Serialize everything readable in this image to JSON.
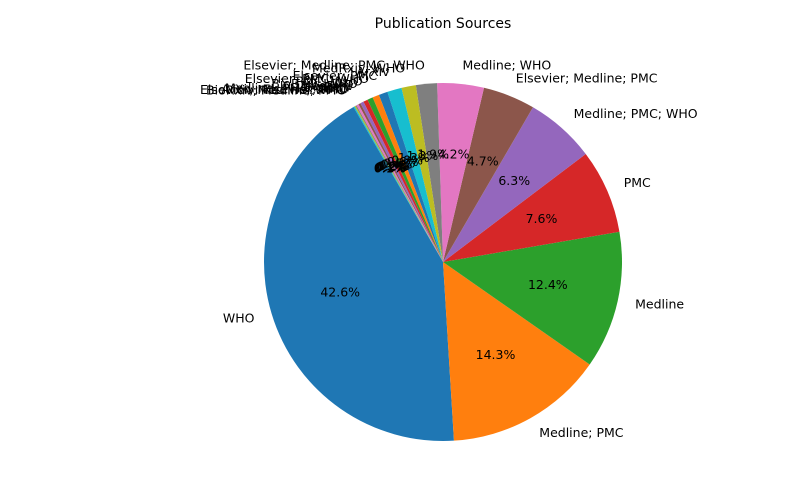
{
  "chart_data": {
    "type": "pie",
    "title": "Publication Sources",
    "start_angle_deg": 120,
    "direction": "counterclockwise",
    "legend": "none",
    "slices": [
      {
        "label": "WHO",
        "value": 42.6,
        "pct_label": "42.6%",
        "color": "#1f77b4"
      },
      {
        "label": "Medline; PMC",
        "value": 14.3,
        "pct_label": "14.3%",
        "color": "#ff7f0e"
      },
      {
        "label": "Medline",
        "value": 12.4,
        "pct_label": "12.4%",
        "color": "#2ca02c"
      },
      {
        "label": "PMC",
        "value": 7.6,
        "pct_label": "7.6%",
        "color": "#d62728"
      },
      {
        "label": "Medline; PMC; WHO",
        "value": 6.3,
        "pct_label": "6.3%",
        "color": "#9467bd"
      },
      {
        "label": "Elsevier; Medline; PMC",
        "value": 4.7,
        "pct_label": "4.7%",
        "color": "#8c564b"
      },
      {
        "label": "Medline; WHO",
        "value": 4.2,
        "pct_label": "4.2%",
        "color": "#e377c2"
      },
      {
        "label": "Elsevier; Medline; PMC; WHO",
        "value": 1.9,
        "pct_label": "1.9%",
        "color": "#7f7f7f"
      },
      {
        "label": "MedRxiv; WHO",
        "value": 1.3,
        "pct_label": "1.3%",
        "color": "#bcbd22"
      },
      {
        "label": "ArXiv",
        "value": 1.3,
        "pct_label": "1.3%",
        "color": "#17becf"
      },
      {
        "label": "Elsevier; PMC",
        "value": 0.8,
        "pct_label": "0.8%",
        "color": "#1f77b4"
      },
      {
        "label": "Elsevier; PMC; WHO",
        "value": 0.6,
        "pct_label": "0.6%",
        "color": "#ff7f0e"
      },
      {
        "label": "PMC; WHO",
        "value": 0.5,
        "pct_label": "0.5%",
        "color": "#2ca02c"
      },
      {
        "label": "BioRxiv; WHO",
        "value": 0.4,
        "pct_label": "0.4%",
        "color": "#d62728"
      },
      {
        "label": "MedRxiv",
        "value": 0.3,
        "pct_label": "0.3%",
        "color": "#9467bd"
      },
      {
        "label": "BioRxiv",
        "value": 0.2,
        "pct_label": "0.2%",
        "color": "#8c564b"
      },
      {
        "label": "Medline; PMC; WHO",
        "value": 0.2,
        "pct_label": "0.2%",
        "color": "#e377c2"
      },
      {
        "label": "ArXiv; Elsevier; PMC",
        "value": 0.1,
        "pct_label": "0.1%",
        "color": "#7f7f7f"
      },
      {
        "label": "Elsevier; Medline; WHO",
        "value": 0.1,
        "pct_label": "0.1%",
        "color": "#bcbd22"
      },
      {
        "label": "BioRxiv; Medline; PMC",
        "value": 0.1,
        "pct_label": "0.1%",
        "color": "#17becf"
      }
    ]
  }
}
